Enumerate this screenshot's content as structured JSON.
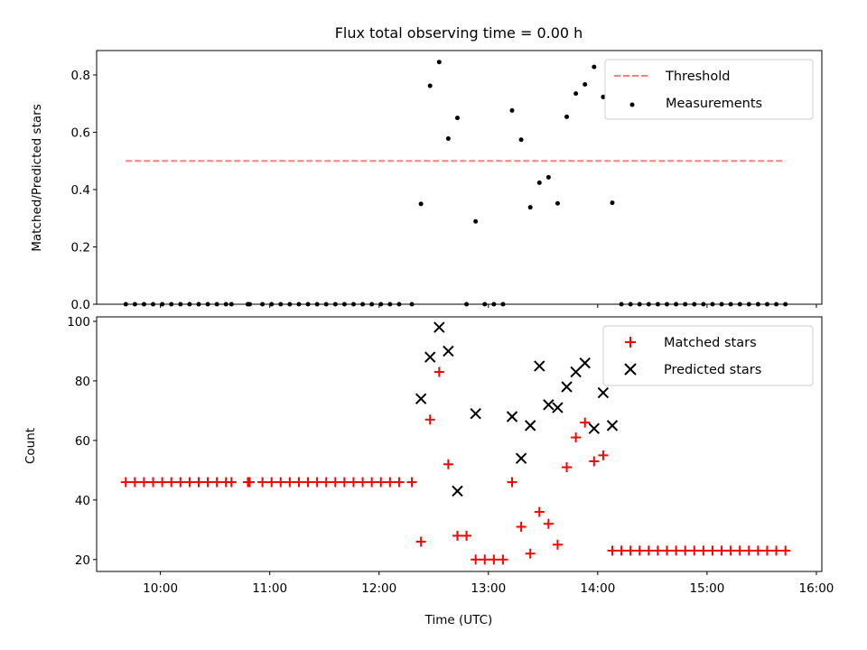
{
  "colors": {
    "threshold": "#ff7f7f",
    "measurements": "#000000",
    "matched": "#ff0000",
    "predicted": "#000000"
  },
  "chart_data": [
    {
      "type": "scatter",
      "title": "Flux total observing time = 0.00 h",
      "ylabel": "Matched/Predicted stars",
      "xlim": [
        "09:25",
        "16:03"
      ],
      "ylim": [
        0,
        0.885
      ],
      "yticks": [
        0.0,
        0.2,
        0.4,
        0.6,
        0.8
      ],
      "ytick_labels": [
        "0.0",
        "0.2",
        "0.4",
        "0.6",
        "0.8"
      ],
      "legend_position": "top-right",
      "threshold": {
        "name": "Threshold",
        "y": 0.5,
        "x_start": "09:41",
        "x_end": "15:43"
      },
      "series": [
        {
          "name": "Measurements",
          "points": [
            [
              "09:41",
              0
            ],
            [
              "09:46",
              0
            ],
            [
              "09:51",
              0
            ],
            [
              "09:56",
              0
            ],
            [
              "10:01",
              0
            ],
            [
              "10:06",
              0
            ],
            [
              "10:11",
              0
            ],
            [
              "10:16",
              0
            ],
            [
              "10:21",
              0
            ],
            [
              "10:26",
              0
            ],
            [
              "10:31",
              0
            ],
            [
              "10:36",
              0
            ],
            [
              "10:39",
              0
            ],
            [
              "10:48",
              0
            ],
            [
              "10:49",
              0
            ],
            [
              "10:56",
              0
            ],
            [
              "11:01",
              0
            ],
            [
              "11:06",
              0
            ],
            [
              "11:11",
              0
            ],
            [
              "11:16",
              0
            ],
            [
              "11:21",
              0
            ],
            [
              "11:26",
              0
            ],
            [
              "11:31",
              0
            ],
            [
              "11:36",
              0
            ],
            [
              "11:41",
              0
            ],
            [
              "11:46",
              0
            ],
            [
              "11:51",
              0
            ],
            [
              "11:56",
              0
            ],
            [
              "12:01",
              0
            ],
            [
              "12:06",
              0
            ],
            [
              "12:11",
              0
            ],
            [
              "12:18",
              0
            ],
            [
              "12:23",
              0.35
            ],
            [
              "12:28",
              0.762
            ],
            [
              "12:33",
              0.845
            ],
            [
              "12:38",
              0.578
            ],
            [
              "12:43",
              0.65
            ],
            [
              "12:48",
              0
            ],
            [
              "12:53",
              0.289
            ],
            [
              "12:58",
              0
            ],
            [
              "13:03",
              0
            ],
            [
              "13:08",
              0
            ],
            [
              "13:13",
              0.676
            ],
            [
              "13:18",
              0.574
            ],
            [
              "13:23",
              0.338
            ],
            [
              "13:28",
              0.424
            ],
            [
              "13:33",
              0.443
            ],
            [
              "13:38",
              0.352
            ],
            [
              "13:43",
              0.654
            ],
            [
              "13:48",
              0.735
            ],
            [
              "13:53",
              0.767
            ],
            [
              "13:58",
              0.828
            ],
            [
              "14:03",
              0.723
            ],
            [
              "14:08",
              0.354
            ],
            [
              "14:13",
              0
            ],
            [
              "14:18",
              0
            ],
            [
              "14:23",
              0
            ],
            [
              "14:28",
              0
            ],
            [
              "14:33",
              0
            ],
            [
              "14:38",
              0
            ],
            [
              "14:43",
              0
            ],
            [
              "14:48",
              0
            ],
            [
              "14:53",
              0
            ],
            [
              "14:58",
              0
            ],
            [
              "15:03",
              0
            ],
            [
              "15:08",
              0
            ],
            [
              "15:13",
              0
            ],
            [
              "15:18",
              0
            ],
            [
              "15:23",
              0
            ],
            [
              "15:28",
              0
            ],
            [
              "15:33",
              0
            ],
            [
              "15:38",
              0
            ],
            [
              "15:43",
              0
            ]
          ]
        }
      ]
    },
    {
      "type": "scatter",
      "xlabel": "Time (UTC)",
      "ylabel": "Count",
      "xlim": [
        "09:25",
        "16:03"
      ],
      "ylim": [
        16,
        101.5
      ],
      "yticks": [
        20,
        40,
        60,
        80,
        100
      ],
      "ytick_labels": [
        "20",
        "40",
        "60",
        "80",
        "100"
      ],
      "xticks": [
        "10:00",
        "11:00",
        "12:00",
        "13:00",
        "14:00",
        "15:00",
        "16:00"
      ],
      "xtick_labels": [
        "10:00",
        "11:00",
        "12:00",
        "13:00",
        "14:00",
        "15:00",
        "16:00"
      ],
      "legend_position": "top-right",
      "series": [
        {
          "name": "Matched stars",
          "marker": "+",
          "points": [
            [
              "09:41",
              46
            ],
            [
              "09:46",
              46
            ],
            [
              "09:51",
              46
            ],
            [
              "09:56",
              46
            ],
            [
              "10:01",
              46
            ],
            [
              "10:06",
              46
            ],
            [
              "10:11",
              46
            ],
            [
              "10:16",
              46
            ],
            [
              "10:21",
              46
            ],
            [
              "10:26",
              46
            ],
            [
              "10:31",
              46
            ],
            [
              "10:36",
              46
            ],
            [
              "10:39",
              46
            ],
            [
              "10:48",
              46
            ],
            [
              "10:49",
              46
            ],
            [
              "10:56",
              46
            ],
            [
              "11:01",
              46
            ],
            [
              "11:06",
              46
            ],
            [
              "11:11",
              46
            ],
            [
              "11:16",
              46
            ],
            [
              "11:21",
              46
            ],
            [
              "11:26",
              46
            ],
            [
              "11:31",
              46
            ],
            [
              "11:36",
              46
            ],
            [
              "11:41",
              46
            ],
            [
              "11:46",
              46
            ],
            [
              "11:51",
              46
            ],
            [
              "11:56",
              46
            ],
            [
              "12:01",
              46
            ],
            [
              "12:06",
              46
            ],
            [
              "12:11",
              46
            ],
            [
              "12:18",
              46
            ],
            [
              "12:23",
              26
            ],
            [
              "12:28",
              67
            ],
            [
              "12:33",
              83
            ],
            [
              "12:38",
              52
            ],
            [
              "12:43",
              28
            ],
            [
              "12:48",
              28
            ],
            [
              "12:53",
              20
            ],
            [
              "12:58",
              20
            ],
            [
              "13:03",
              20
            ],
            [
              "13:08",
              20
            ],
            [
              "13:13",
              46
            ],
            [
              "13:18",
              31
            ],
            [
              "13:23",
              22
            ],
            [
              "13:28",
              36
            ],
            [
              "13:33",
              32
            ],
            [
              "13:38",
              25
            ],
            [
              "13:43",
              51
            ],
            [
              "13:48",
              61
            ],
            [
              "13:53",
              66
            ],
            [
              "13:58",
              53
            ],
            [
              "14:03",
              55
            ],
            [
              "14:08",
              23
            ],
            [
              "14:13",
              23
            ],
            [
              "14:18",
              23
            ],
            [
              "14:23",
              23
            ],
            [
              "14:28",
              23
            ],
            [
              "14:33",
              23
            ],
            [
              "14:38",
              23
            ],
            [
              "14:43",
              23
            ],
            [
              "14:48",
              23
            ],
            [
              "14:53",
              23
            ],
            [
              "14:58",
              23
            ],
            [
              "15:03",
              23
            ],
            [
              "15:08",
              23
            ],
            [
              "15:13",
              23
            ],
            [
              "15:18",
              23
            ],
            [
              "15:23",
              23
            ],
            [
              "15:28",
              23
            ],
            [
              "15:33",
              23
            ],
            [
              "15:38",
              23
            ],
            [
              "15:43",
              23
            ]
          ]
        },
        {
          "name": "Predicted stars",
          "marker": "x",
          "points": [
            [
              "12:23",
              74
            ],
            [
              "12:28",
              88
            ],
            [
              "12:33",
              98
            ],
            [
              "12:38",
              90
            ],
            [
              "12:43",
              43
            ],
            [
              "12:53",
              69
            ],
            [
              "13:13",
              68
            ],
            [
              "13:18",
              54
            ],
            [
              "13:23",
              65
            ],
            [
              "13:28",
              85
            ],
            [
              "13:33",
              72
            ],
            [
              "13:38",
              71
            ],
            [
              "13:43",
              78
            ],
            [
              "13:48",
              83
            ],
            [
              "13:53",
              86
            ],
            [
              "13:58",
              64
            ],
            [
              "14:03",
              76
            ],
            [
              "14:08",
              65
            ]
          ]
        }
      ]
    }
  ]
}
